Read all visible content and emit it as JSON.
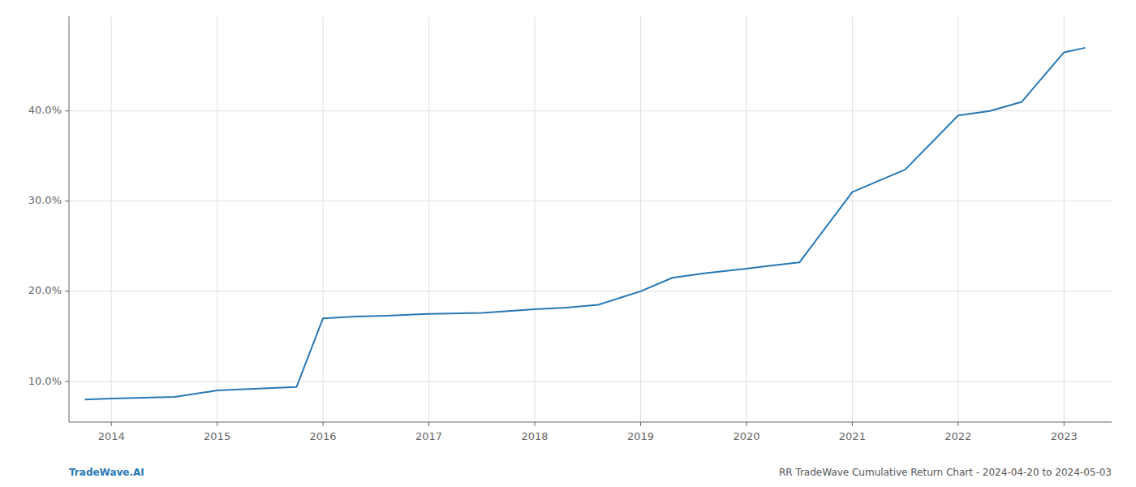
{
  "chart_data": {
    "type": "line",
    "x": [
      2013.75,
      2014.0,
      2014.3,
      2014.6,
      2015.0,
      2015.35,
      2015.75,
      2016.0,
      2016.3,
      2016.6,
      2017.0,
      2017.5,
      2018.0,
      2018.3,
      2018.6,
      2019.0,
      2019.3,
      2019.6,
      2020.0,
      2020.2,
      2020.5,
      2021.0,
      2021.5,
      2022.0,
      2022.3,
      2022.6,
      2023.0,
      2023.2
    ],
    "values": [
      8.0,
      8.1,
      8.2,
      8.3,
      9.0,
      9.2,
      9.4,
      17.0,
      17.2,
      17.3,
      17.5,
      17.6,
      18.0,
      18.2,
      18.5,
      20.0,
      21.5,
      22.0,
      22.5,
      22.8,
      23.2,
      31.0,
      33.5,
      39.5,
      40.0,
      41.0,
      46.5,
      47.0
    ],
    "color": "#2878b5",
    "xlim": [
      2013.6,
      2023.45
    ],
    "xticks": [
      2014,
      2015,
      2016,
      2017,
      2018,
      2019,
      2020,
      2021,
      2022,
      2023
    ],
    "ylim": [
      5.5,
      50.5
    ],
    "yticks": [
      {
        "value": 10.0,
        "label": "10.0%"
      },
      {
        "value": 20.0,
        "label": "20.0%"
      },
      {
        "value": 30.0,
        "label": "30.0%"
      },
      {
        "value": 40.0,
        "label": "40.0%"
      }
    ],
    "grid": true,
    "annotations": [
      "TradeWave.AI",
      "RR TradeWave Cumulative Return Chart - 2024-04-20 to 2024-05-03"
    ]
  }
}
